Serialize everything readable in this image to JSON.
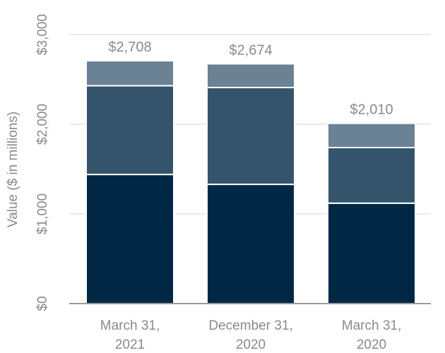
{
  "chart_data": {
    "type": "bar",
    "stacked": true,
    "title": "",
    "xlabel": "",
    "ylabel": "Value ($ in millions)",
    "ylim": [
      0,
      3000
    ],
    "yticks": [
      0,
      1000,
      2000,
      3000
    ],
    "ytick_labels": [
      "$0",
      "$1,000",
      "$2,000",
      "$3,000"
    ],
    "grid": true,
    "legend": "none",
    "categories": [
      [
        "March 31,",
        "2021"
      ],
      [
        "December 31,",
        "2020"
      ],
      [
        "March 31,",
        "2020"
      ]
    ],
    "series": [
      {
        "color": "#002845",
        "values": [
          1440,
          1330,
          1120
        ]
      },
      {
        "color": "#34546c",
        "values": [
          990,
          1080,
          620
        ]
      },
      {
        "color": "#6b8194",
        "values": [
          278,
          264,
          270
        ]
      }
    ],
    "totals": [
      2708,
      2674,
      2010
    ],
    "total_labels": [
      "$2,708",
      "$2,674",
      "$2,010"
    ]
  }
}
